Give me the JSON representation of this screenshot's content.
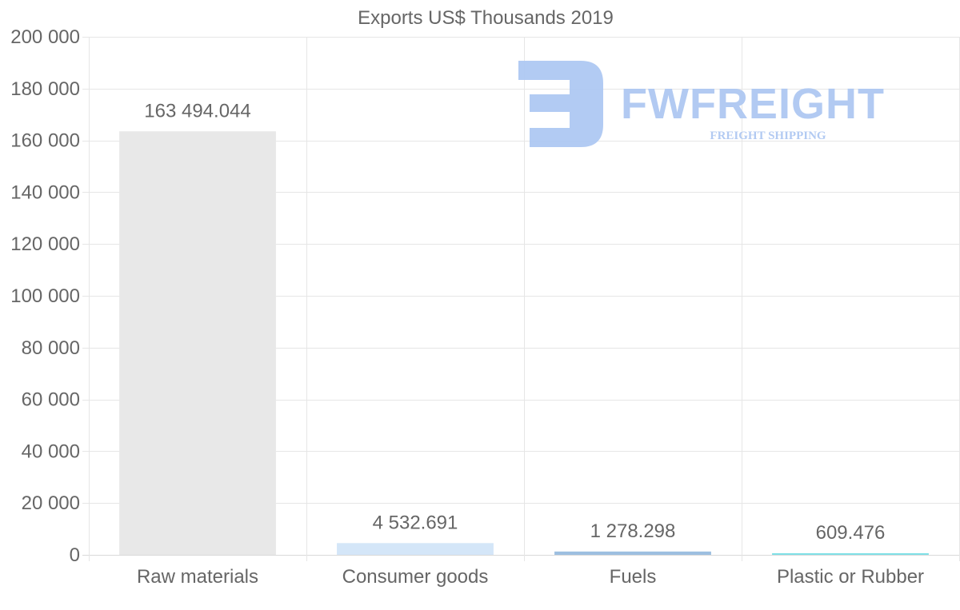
{
  "chart_data": {
    "type": "bar",
    "title": "Exports US$ Thousands 2019",
    "xlabel": "",
    "ylabel": "",
    "categories": [
      "Raw materials",
      "Consumer goods",
      "Fuels",
      "Plastic or Rubber"
    ],
    "values": [
      163494.044,
      4532.691,
      1278.298,
      609.476
    ],
    "data_labels": [
      "163 494.044",
      "4 532.691",
      "1 278.298",
      "609.476"
    ],
    "bar_colors": [
      "#e8e8e8",
      "#d4e6f8",
      "#9dbfe0",
      "#7fe0e6"
    ],
    "ylim": [
      0,
      200000
    ],
    "yticks": [
      0,
      20000,
      40000,
      60000,
      80000,
      100000,
      120000,
      140000,
      160000,
      180000,
      200000
    ],
    "ytick_labels": [
      "0",
      "20 000",
      "40 000",
      "60 000",
      "80 000",
      "100 000",
      "120 000",
      "140 000",
      "160 000",
      "180 000",
      "200 000"
    ],
    "grid": true,
    "legend": "none"
  },
  "watermark": {
    "brand": "FWFREIGHT",
    "tagline": "FREIGHT SHIPPING",
    "color": "#aec8f2"
  }
}
